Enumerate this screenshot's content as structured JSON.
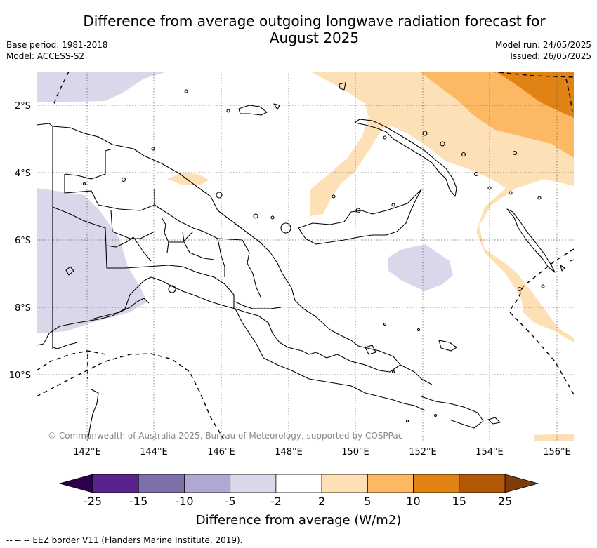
{
  "title_line1": "Difference from average outgoing longwave radiation forecast for",
  "title_line2": "August 2025",
  "base_period": "Base period: 1981-2018",
  "model": "Model: ACCESS-S2",
  "model_run": "Model run: 24/05/2025",
  "issued": "Issued: 26/05/2025",
  "lat_labels": [
    "2°S",
    "4°S",
    "6°S",
    "8°S",
    "10°S"
  ],
  "lon_labels": [
    "142°E",
    "144°E",
    "146°E",
    "148°E",
    "150°E",
    "152°E",
    "154°E",
    "156°E"
  ],
  "copyright": "© Commonwealth of Australia 2025, Bureau of Meteorology, supported by COSPPac",
  "colorbar": {
    "ticks": [
      "-25",
      "-15",
      "-10",
      "-5",
      "-2",
      "2",
      "5",
      "10",
      "15",
      "25"
    ],
    "colors": [
      "#5a228c",
      "#7f6fab",
      "#b0a8d3",
      "#d8d8ea",
      "#ffffff",
      "#fee0b6",
      "#fdb863",
      "#e08214",
      "#b35806"
    ],
    "low_extend_color": "#2d004b",
    "high_extend_color": "#7f3b08",
    "label": "Difference from average (W/m2)"
  },
  "footer": "--  --  -- EEZ border V11 (Flanders Marine Institute, 2019)."
}
